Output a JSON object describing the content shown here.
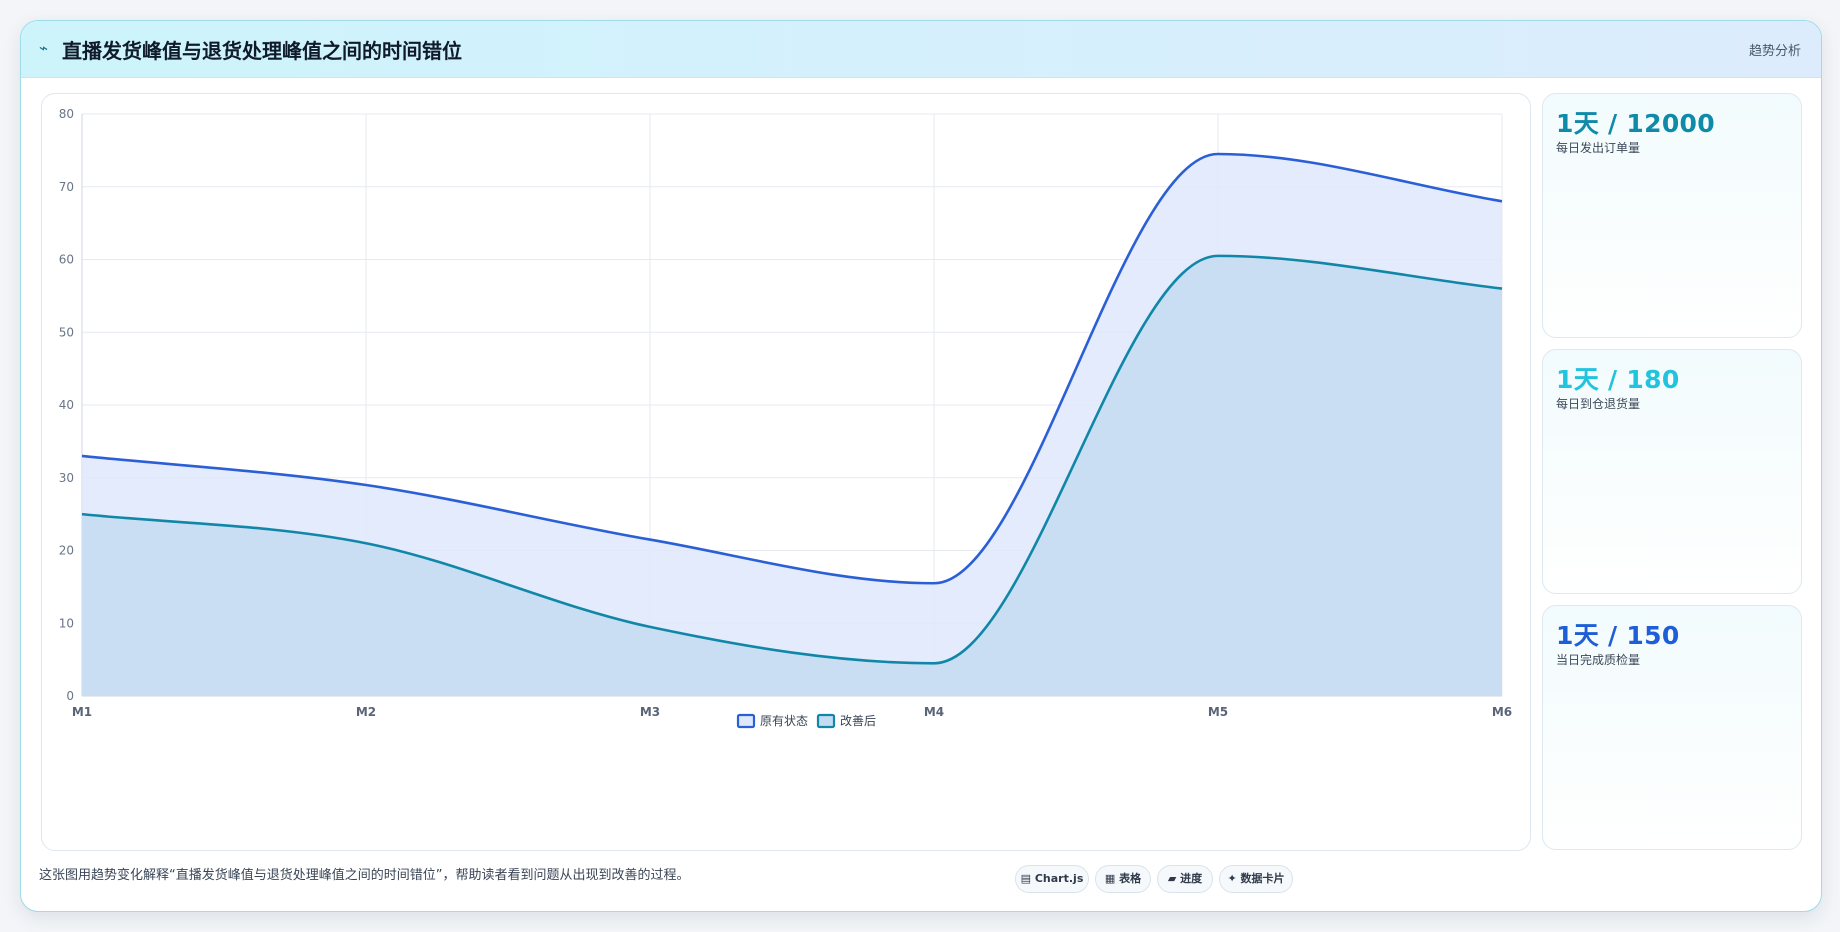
{
  "header": {
    "icon": "trend-icon",
    "title": "直播发货峰值与退货处理峰值之间的时间错位",
    "tag": "趋势分析"
  },
  "stats": [
    {
      "value": "1天 / 12000",
      "label": "每日发出订单量",
      "color": "#0f8aa8"
    },
    {
      "value": "1天 / 180",
      "label": "每日到仓退货量",
      "color": "#22c3dd"
    },
    {
      "value": "1天 / 150",
      "label": "当日完成质检量",
      "color": "#1f5fd6"
    }
  ],
  "footer": {
    "note": "这张图用趋势变化解释“直播发货峰值与退货处理峰值之间的时间错位”，帮助读者看到问题从出现到改善的过程。",
    "pills": [
      {
        "icon": "chart-icon",
        "label": "Chart.js"
      },
      {
        "icon": "table-icon",
        "label": "表格"
      },
      {
        "icon": "progress-icon",
        "label": "进度"
      },
      {
        "icon": "card-icon",
        "label": "数据卡片"
      }
    ]
  },
  "chart_data": {
    "type": "area",
    "categories": [
      "M1",
      "M2",
      "M3",
      "M4",
      "M5",
      "M6"
    ],
    "ylim": [
      0,
      80
    ],
    "yticks": [
      0,
      10,
      20,
      30,
      40,
      50,
      60,
      70,
      80
    ],
    "grid": true,
    "legend_position": "bottom",
    "series": [
      {
        "name": "原有状态",
        "values": [
          33,
          29,
          21.5,
          15.5,
          74.5,
          68
        ],
        "color": "#2a5fd6",
        "fill": "#dfe8fb"
      },
      {
        "name": "改善后",
        "values": [
          25,
          21,
          9.5,
          4.5,
          60.5,
          56
        ],
        "color": "#1187a8",
        "fill": "#c4dcf1"
      }
    ]
  }
}
